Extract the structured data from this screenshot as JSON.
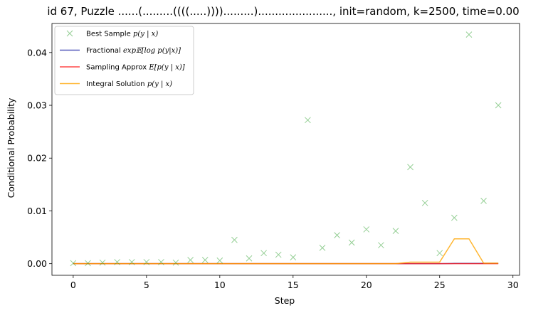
{
  "chart_data": {
    "type": "line",
    "title": "id 67, Puzzle ......(.........((((.....)))).........)......................, init=random, k=2500, time=0.00",
    "xlabel": "Step",
    "ylabel": "Conditional Probability",
    "xlim": [
      -1.45,
      30.45
    ],
    "ylim": [
      -0.0022,
      0.0455
    ],
    "xticks": [
      0,
      5,
      10,
      15,
      20,
      25,
      30
    ],
    "yticks": [
      0.0,
      0.01,
      0.02,
      0.03,
      0.04
    ],
    "ytick_labels": [
      "0.00",
      "0.01",
      "0.02",
      "0.03",
      "0.04"
    ],
    "legend_position": "upper-left",
    "grid": false,
    "series": [
      {
        "name": "Best Sample p(y | x)",
        "label_plain": "Best Sample ",
        "label_math": "p(y | x)",
        "style": "marker-x",
        "color": "#2ca02c",
        "x": [
          0,
          1,
          2,
          3,
          4,
          5,
          6,
          7,
          8,
          9,
          10,
          11,
          12,
          13,
          14,
          15,
          16,
          17,
          18,
          19,
          20,
          21,
          22,
          23,
          24,
          25,
          26,
          27,
          28,
          29
        ],
        "values": [
          0.0001,
          0.0001,
          0.0002,
          0.0003,
          0.0003,
          0.0003,
          0.0003,
          0.0002,
          0.0007,
          0.0007,
          0.0006,
          0.0045,
          0.001,
          0.002,
          0.0017,
          0.0012,
          0.0272,
          0.003,
          0.0054,
          0.004,
          0.0065,
          0.0035,
          0.0062,
          0.0183,
          0.0115,
          0.002,
          0.0087,
          0.0434,
          0.0119,
          0.03
        ]
      },
      {
        "name": "Fractional exp E[log p(y|x)]",
        "label_plain": "Fractional ",
        "label_math": "exp𝔼[log p(y|x)]",
        "style": "line",
        "color": "#2a2faa",
        "x": [
          0,
          1,
          2,
          3,
          4,
          5,
          6,
          7,
          8,
          9,
          10,
          11,
          12,
          13,
          14,
          15,
          16,
          17,
          18,
          19,
          20,
          21,
          22,
          23,
          24,
          25,
          26,
          27,
          28,
          29
        ],
        "values": [
          0,
          0,
          0,
          0,
          0,
          0,
          0,
          0,
          0,
          0,
          0,
          0,
          0,
          0,
          0,
          0,
          0,
          0,
          0,
          0,
          0,
          0,
          0,
          0,
          0,
          0,
          5e-05,
          5e-05,
          5e-05,
          5e-05
        ]
      },
      {
        "name": "Sampling Approx E[p(y | x)]",
        "label_plain": "Sampling Approx ",
        "label_math": "E[p(y | x)]",
        "style": "line",
        "color": "#ff1a1a",
        "x": [
          0,
          1,
          2,
          3,
          4,
          5,
          6,
          7,
          8,
          9,
          10,
          11,
          12,
          13,
          14,
          15,
          16,
          17,
          18,
          19,
          20,
          21,
          22,
          23,
          24,
          25,
          26,
          27,
          28,
          29
        ],
        "values": [
          0,
          0,
          0,
          0,
          0,
          0,
          0,
          0,
          0,
          0,
          0,
          0,
          0,
          0,
          0,
          0,
          0,
          0,
          0,
          0,
          0,
          0,
          0,
          0,
          0,
          0,
          0,
          0,
          0,
          0
        ]
      },
      {
        "name": "Integral Solution p(y | x)",
        "label_plain": "Integral Solution ",
        "label_math": "p(y | x)",
        "style": "line",
        "color": "#ffa500",
        "x": [
          0,
          1,
          2,
          3,
          4,
          5,
          6,
          7,
          8,
          9,
          10,
          11,
          12,
          13,
          14,
          15,
          16,
          17,
          18,
          19,
          20,
          21,
          22,
          23,
          24,
          25,
          26,
          27,
          28,
          29
        ],
        "values": [
          0,
          0,
          0,
          0,
          0,
          0,
          0,
          0,
          0,
          0,
          0,
          0,
          0,
          0,
          0,
          0,
          0,
          0,
          0,
          0,
          0,
          0,
          0,
          0.0003,
          0.0003,
          0.0003,
          0.0047,
          0.0047,
          0.0001,
          0.0001
        ]
      }
    ]
  }
}
